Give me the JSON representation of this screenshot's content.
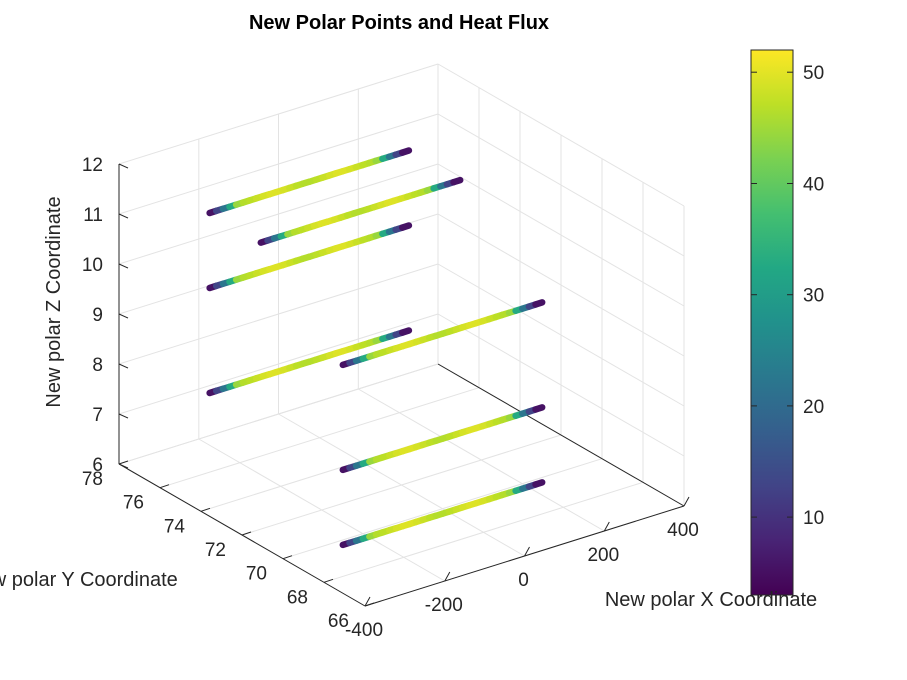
{
  "chart_data": {
    "type": "scatter3d",
    "title": "New Polar Points and Heat Flux",
    "xlabel": "New polar X Coordinate",
    "ylabel": "New polar Y Coordinate",
    "zlabel": "New polar Z Coordinate",
    "xlim": [
      -400,
      400
    ],
    "ylim": [
      66,
      78
    ],
    "zlim": [
      6,
      12
    ],
    "xticks": [
      -400,
      -200,
      0,
      200,
      400
    ],
    "yticks": [
      66,
      68,
      70,
      72,
      74,
      76,
      78
    ],
    "zticks": [
      6,
      7,
      8,
      9,
      10,
      11,
      12
    ],
    "grid": true,
    "colormap": "viridis",
    "colorbar": {
      "range": [
        3,
        52
      ],
      "ticks": [
        10,
        20,
        30,
        40,
        50
      ]
    },
    "segments": [
      {
        "x_range": [
          -250,
          250
        ],
        "y": 76.5,
        "z": 11.0,
        "peak_flux": 48
      },
      {
        "x_range": [
          -250,
          250
        ],
        "y": 74.0,
        "z": 11.0,
        "peak_flux": 48
      },
      {
        "x_range": [
          -250,
          250
        ],
        "y": 76.5,
        "z": 9.5,
        "peak_flux": 48
      },
      {
        "x_range": [
          -250,
          250
        ],
        "y": 70.0,
        "z": 9.5,
        "peak_flux": 48
      },
      {
        "x_range": [
          -250,
          250
        ],
        "y": 76.5,
        "z": 7.4,
        "peak_flux": 48
      },
      {
        "x_range": [
          -250,
          250
        ],
        "y": 70.0,
        "z": 7.4,
        "peak_flux": 48
      },
      {
        "x_range": [
          -250,
          250
        ],
        "y": 70.0,
        "z": 5.9,
        "peak_flux": 48
      }
    ]
  }
}
